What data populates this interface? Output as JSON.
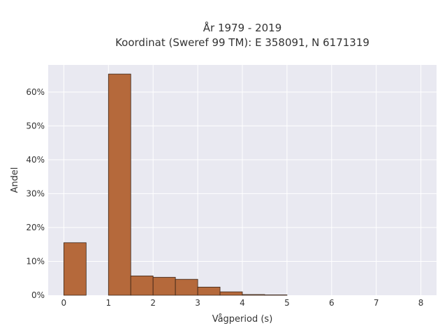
{
  "chart_data": {
    "type": "bar",
    "title": "År 1979 - 2019",
    "subtitle": "Koordinat (Sweref 99 TM): E 358091, N 6171319",
    "xlabel": "Vågperiod (s)",
    "ylabel": "Andel",
    "bin_width": 0.5,
    "bins": [
      {
        "start": 0.0,
        "value": 15.5
      },
      {
        "start": 0.5,
        "value": 0
      },
      {
        "start": 1.0,
        "value": 65.3
      },
      {
        "start": 1.5,
        "value": 5.7
      },
      {
        "start": 2.0,
        "value": 5.3
      },
      {
        "start": 2.5,
        "value": 4.7
      },
      {
        "start": 3.0,
        "value": 2.4
      },
      {
        "start": 3.5,
        "value": 1.0
      },
      {
        "start": 4.0,
        "value": 0.2
      },
      {
        "start": 4.5,
        "value": 0.1
      }
    ],
    "xlim": [
      -0.35,
      8.35
    ],
    "ylim": [
      0,
      68
    ],
    "x_ticks": [
      0,
      1,
      2,
      3,
      4,
      5,
      6,
      7,
      8
    ],
    "y_ticks": [
      0,
      10,
      20,
      30,
      40,
      50,
      60
    ],
    "y_tick_labels": [
      "0%",
      "10%",
      "20%",
      "30%",
      "40%",
      "50%",
      "60%"
    ],
    "bar_color": "#b5693b",
    "bar_edge_color": "#3a2417",
    "plot_bg": "#e9e9f1",
    "grid": true
  }
}
